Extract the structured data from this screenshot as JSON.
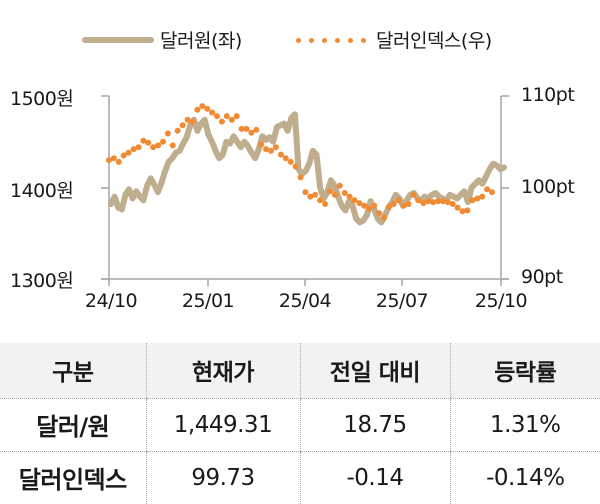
{
  "legend": {
    "series1_label": "달러원(좌)",
    "series2_label": "달러인덱스(우)"
  },
  "axes": {
    "left_ticks": [
      "1500원",
      "1400원",
      "1300원"
    ],
    "right_ticks": [
      "110pt",
      "100pt",
      "90pt"
    ],
    "x_ticks": [
      "24/10",
      "25/01",
      "25/04",
      "25/07",
      "25/10"
    ]
  },
  "colors": {
    "krw_line": "#bfae8e",
    "dxy_dots": "#f08a33",
    "axis": "#a6a6a6",
    "header_bg": "#f2f2f2"
  },
  "chart_data": {
    "type": "line",
    "title": "",
    "xlabel": "",
    "ylabel_left": "원",
    "ylabel_right": "pt",
    "x_range": [
      "24/10",
      "25/10"
    ],
    "x_ticks": [
      "24/10",
      "25/01",
      "25/04",
      "25/07",
      "25/10"
    ],
    "ylim_left": [
      1300,
      1500
    ],
    "ylim_right": [
      90,
      110
    ],
    "grid": false,
    "legend_position": "top",
    "series": [
      {
        "name": "달러원(좌)",
        "axis": "left",
        "style": "solid-thick",
        "color": "#bfae8e",
        "values": [
          1382,
          1390,
          1378,
          1376,
          1392,
          1398,
          1388,
          1396,
          1390,
          1386,
          1402,
          1410,
          1403,
          1395,
          1405,
          1418,
          1428,
          1432,
          1438,
          1440,
          1448,
          1455,
          1468,
          1474,
          1462,
          1470,
          1474,
          1458,
          1450,
          1440,
          1432,
          1436,
          1450,
          1448,
          1456,
          1450,
          1444,
          1450,
          1445,
          1438,
          1432,
          1442,
          1456,
          1452,
          1455,
          1450,
          1466,
          1468,
          1470,
          1462,
          1476,
          1480,
          1420,
          1415,
          1418,
          1426,
          1440,
          1436,
          1400,
          1388,
          1395,
          1408,
          1402,
          1390,
          1380,
          1375,
          1385,
          1380,
          1366,
          1362,
          1364,
          1370,
          1385,
          1376,
          1366,
          1362,
          1370,
          1378,
          1384,
          1392,
          1388,
          1380,
          1386,
          1392,
          1394,
          1388,
          1386,
          1390,
          1388,
          1392,
          1394,
          1390,
          1388,
          1386,
          1392,
          1390,
          1388,
          1392,
          1396,
          1384,
          1400,
          1404,
          1408,
          1404,
          1412,
          1420,
          1426,
          1424,
          1420,
          1422
        ]
      },
      {
        "name": "달러인덱스(우)",
        "axis": "right",
        "style": "dotted",
        "color": "#f08a33",
        "values": [
          103.0,
          103.2,
          102.8,
          103.5,
          103.8,
          104.2,
          104.4,
          105.1,
          104.9,
          104.4,
          104.6,
          105.0,
          105.9,
          104.6,
          106.2,
          106.8,
          107.4,
          107.2,
          108.5,
          108.9,
          108.6,
          108.2,
          107.8,
          107.2,
          107.8,
          107.4,
          107.8,
          106.4,
          106.4,
          106.0,
          106.3,
          104.7,
          104.2,
          104.0,
          104.4,
          103.6,
          103.2,
          102.8,
          102.3,
          101.1,
          99.5,
          99.0,
          99.2,
          98.6,
          98.2,
          99.6,
          99.2,
          100.2,
          99.4,
          99.0,
          98.6,
          98.3,
          98.0,
          97.7,
          98.0,
          97.2,
          96.7,
          97.9,
          98.2,
          98.6,
          98.0,
          98.2,
          99.2,
          98.6,
          98.3,
          98.5,
          98.4,
          98.5,
          98.5,
          98.4,
          98.2,
          97.8,
          97.4,
          97.5,
          98.6,
          98.8,
          99.0,
          99.8,
          99.5
        ]
      }
    ]
  },
  "table": {
    "headers": [
      "구분",
      "현재가",
      "전일 대비",
      "등락률"
    ],
    "rows": [
      {
        "label": "달러/원",
        "price": "1,449.31",
        "change": "18.75",
        "rate": "1.31%"
      },
      {
        "label": "달러인덱스",
        "price": "99.73",
        "change": "-0.14",
        "rate": "-0.14%"
      }
    ]
  }
}
